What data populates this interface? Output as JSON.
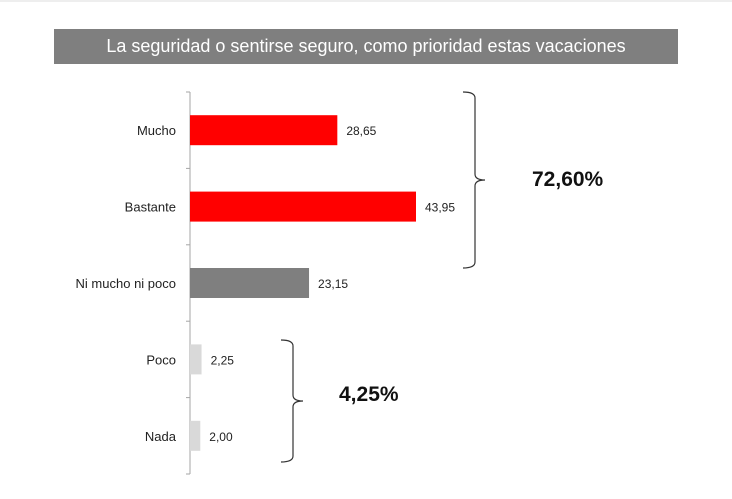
{
  "chart_data": {
    "type": "bar",
    "orientation": "horizontal",
    "title": "La seguridad o sentirse seguro, como prioridad estas vacaciones",
    "categories": [
      "Mucho",
      "Bastante",
      "Ni mucho ni poco",
      "Poco",
      "Nada"
    ],
    "values": [
      28.65,
      43.95,
      23.15,
      2.25,
      2.0
    ],
    "value_labels": [
      "28,65",
      "43,95",
      "23,15",
      "2,25",
      "2,00"
    ],
    "bar_colors": [
      "#ff0000",
      "#ff0000",
      "#7f7f7f",
      "#d9d9d9",
      "#d9d9d9"
    ],
    "xlabel": "",
    "ylabel": "",
    "xlim": [
      0,
      50
    ],
    "grid": false,
    "legend": "none",
    "groups": [
      {
        "label": "72,60%",
        "from": 0,
        "to": 1
      },
      {
        "label": "4,25%",
        "from": 3,
        "to": 4
      }
    ]
  },
  "colors": {
    "title_bg": "#7f7f7f",
    "title_text": "#ffffff",
    "axis": "#a6a6a6",
    "bracket": "#333333"
  }
}
